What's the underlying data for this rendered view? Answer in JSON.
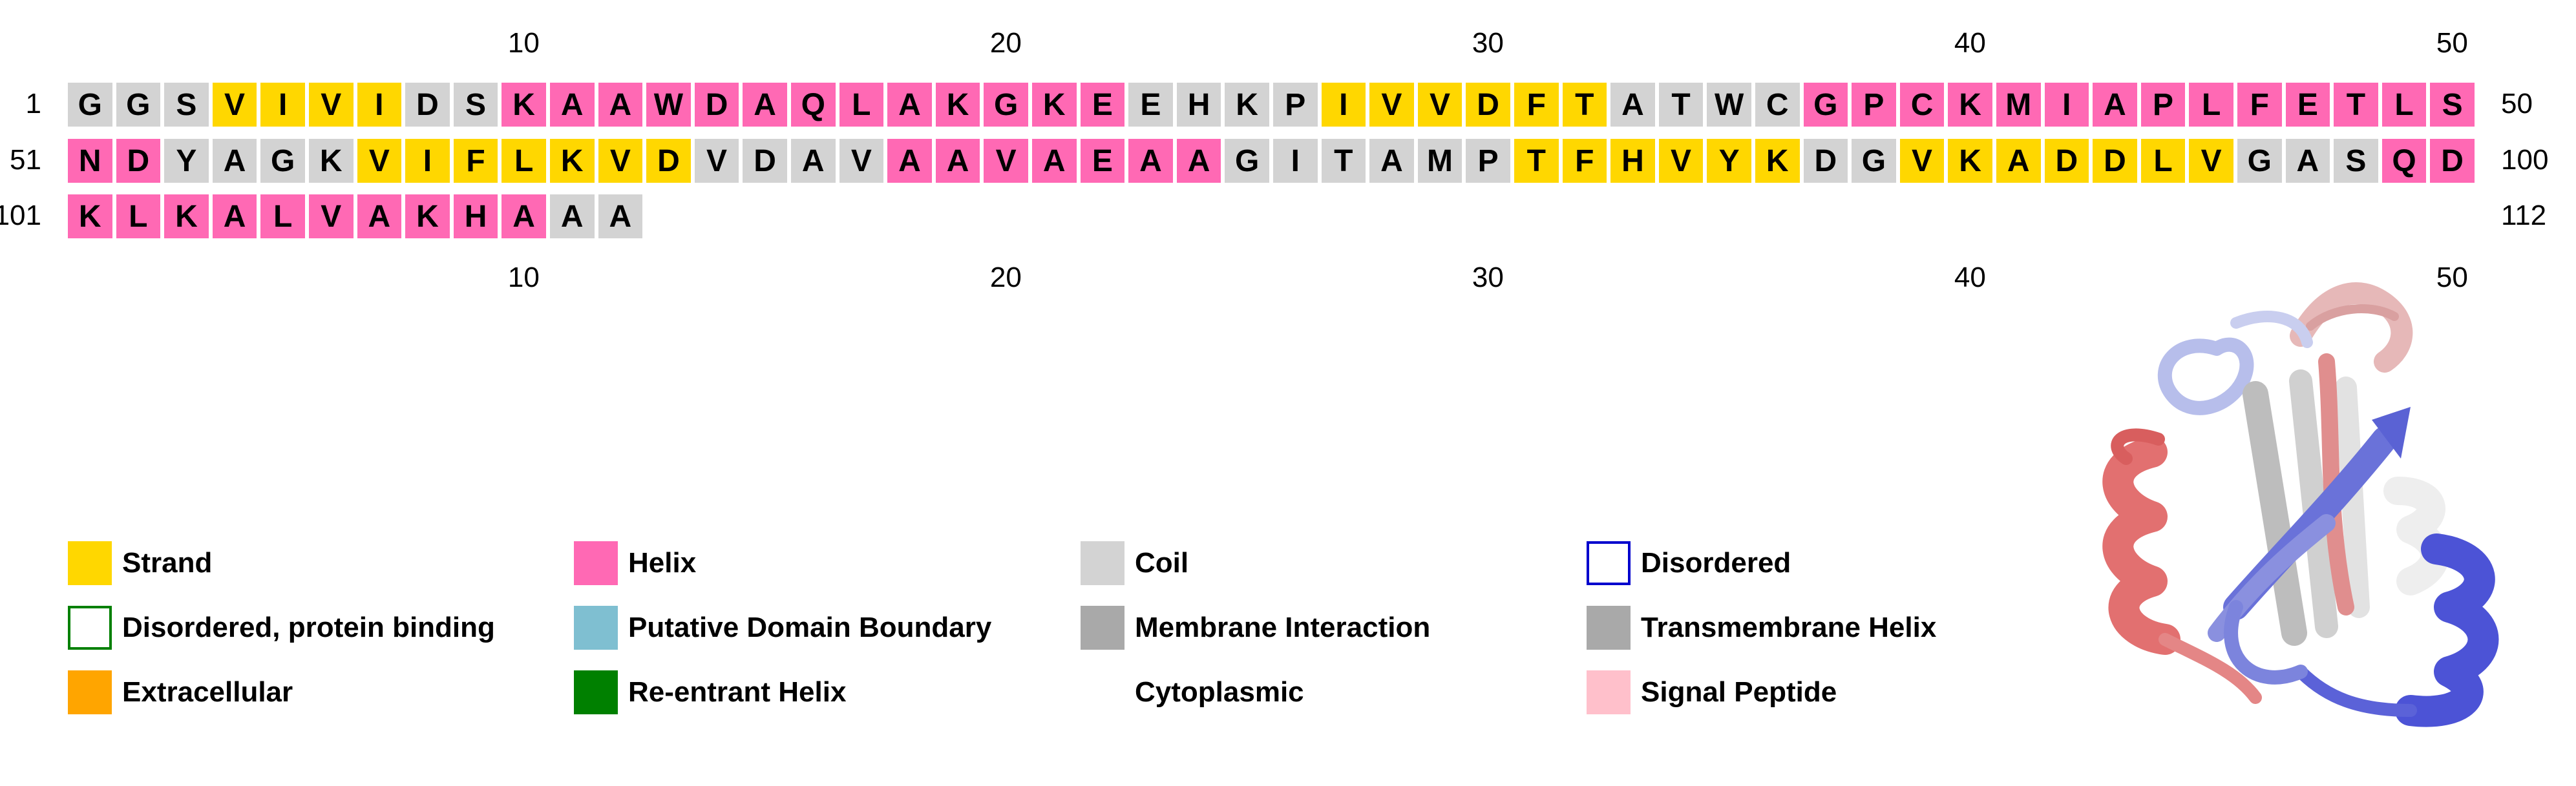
{
  "sequence_rows": [
    {
      "start_label": "1",
      "end_label": "50",
      "residues": [
        {
          "aa": "G",
          "ss": "coil"
        },
        {
          "aa": "G",
          "ss": "coil"
        },
        {
          "aa": "S",
          "ss": "coil"
        },
        {
          "aa": "V",
          "ss": "strand"
        },
        {
          "aa": "I",
          "ss": "strand"
        },
        {
          "aa": "V",
          "ss": "strand"
        },
        {
          "aa": "I",
          "ss": "strand"
        },
        {
          "aa": "D",
          "ss": "coil"
        },
        {
          "aa": "S",
          "ss": "coil"
        },
        {
          "aa": "K",
          "ss": "helix"
        },
        {
          "aa": "A",
          "ss": "helix"
        },
        {
          "aa": "A",
          "ss": "helix"
        },
        {
          "aa": "W",
          "ss": "helix"
        },
        {
          "aa": "D",
          "ss": "helix"
        },
        {
          "aa": "A",
          "ss": "helix"
        },
        {
          "aa": "Q",
          "ss": "helix"
        },
        {
          "aa": "L",
          "ss": "helix"
        },
        {
          "aa": "A",
          "ss": "helix"
        },
        {
          "aa": "K",
          "ss": "helix"
        },
        {
          "aa": "G",
          "ss": "helix"
        },
        {
          "aa": "K",
          "ss": "helix"
        },
        {
          "aa": "E",
          "ss": "helix"
        },
        {
          "aa": "E",
          "ss": "coil"
        },
        {
          "aa": "H",
          "ss": "coil"
        },
        {
          "aa": "K",
          "ss": "coil"
        },
        {
          "aa": "P",
          "ss": "coil"
        },
        {
          "aa": "I",
          "ss": "strand"
        },
        {
          "aa": "V",
          "ss": "strand"
        },
        {
          "aa": "V",
          "ss": "strand"
        },
        {
          "aa": "D",
          "ss": "strand"
        },
        {
          "aa": "F",
          "ss": "strand"
        },
        {
          "aa": "T",
          "ss": "strand"
        },
        {
          "aa": "A",
          "ss": "coil"
        },
        {
          "aa": "T",
          "ss": "coil"
        },
        {
          "aa": "W",
          "ss": "coil"
        },
        {
          "aa": "C",
          "ss": "coil"
        },
        {
          "aa": "G",
          "ss": "helix"
        },
        {
          "aa": "P",
          "ss": "helix"
        },
        {
          "aa": "C",
          "ss": "helix"
        },
        {
          "aa": "K",
          "ss": "helix"
        },
        {
          "aa": "M",
          "ss": "helix"
        },
        {
          "aa": "I",
          "ss": "helix"
        },
        {
          "aa": "A",
          "ss": "helix"
        },
        {
          "aa": "P",
          "ss": "helix"
        },
        {
          "aa": "L",
          "ss": "helix"
        },
        {
          "aa": "F",
          "ss": "helix"
        },
        {
          "aa": "E",
          "ss": "helix"
        },
        {
          "aa": "T",
          "ss": "helix"
        },
        {
          "aa": "L",
          "ss": "helix"
        },
        {
          "aa": "S",
          "ss": "helix"
        }
      ]
    },
    {
      "start_label": "51",
      "end_label": "100",
      "residues": [
        {
          "aa": "N",
          "ss": "helix"
        },
        {
          "aa": "D",
          "ss": "helix"
        },
        {
          "aa": "Y",
          "ss": "coil"
        },
        {
          "aa": "A",
          "ss": "coil"
        },
        {
          "aa": "G",
          "ss": "coil"
        },
        {
          "aa": "K",
          "ss": "coil"
        },
        {
          "aa": "V",
          "ss": "strand"
        },
        {
          "aa": "I",
          "ss": "strand"
        },
        {
          "aa": "F",
          "ss": "strand"
        },
        {
          "aa": "L",
          "ss": "strand"
        },
        {
          "aa": "K",
          "ss": "strand"
        },
        {
          "aa": "V",
          "ss": "strand"
        },
        {
          "aa": "D",
          "ss": "strand"
        },
        {
          "aa": "V",
          "ss": "coil"
        },
        {
          "aa": "D",
          "ss": "coil"
        },
        {
          "aa": "A",
          "ss": "coil"
        },
        {
          "aa": "V",
          "ss": "coil"
        },
        {
          "aa": "A",
          "ss": "helix"
        },
        {
          "aa": "A",
          "ss": "helix"
        },
        {
          "aa": "V",
          "ss": "helix"
        },
        {
          "aa": "A",
          "ss": "helix"
        },
        {
          "aa": "E",
          "ss": "helix"
        },
        {
          "aa": "A",
          "ss": "helix"
        },
        {
          "aa": "A",
          "ss": "helix"
        },
        {
          "aa": "G",
          "ss": "coil"
        },
        {
          "aa": "I",
          "ss": "coil"
        },
        {
          "aa": "T",
          "ss": "coil"
        },
        {
          "aa": "A",
          "ss": "coil"
        },
        {
          "aa": "M",
          "ss": "coil"
        },
        {
          "aa": "P",
          "ss": "coil"
        },
        {
          "aa": "T",
          "ss": "strand"
        },
        {
          "aa": "F",
          "ss": "strand"
        },
        {
          "aa": "H",
          "ss": "strand"
        },
        {
          "aa": "V",
          "ss": "strand"
        },
        {
          "aa": "Y",
          "ss": "strand"
        },
        {
          "aa": "K",
          "ss": "strand"
        },
        {
          "aa": "D",
          "ss": "coil"
        },
        {
          "aa": "G",
          "ss": "coil"
        },
        {
          "aa": "V",
          "ss": "strand"
        },
        {
          "aa": "K",
          "ss": "strand"
        },
        {
          "aa": "A",
          "ss": "strand"
        },
        {
          "aa": "D",
          "ss": "strand"
        },
        {
          "aa": "D",
          "ss": "strand"
        },
        {
          "aa": "L",
          "ss": "strand"
        },
        {
          "aa": "V",
          "ss": "strand"
        },
        {
          "aa": "G",
          "ss": "coil"
        },
        {
          "aa": "A",
          "ss": "coil"
        },
        {
          "aa": "S",
          "ss": "coil"
        },
        {
          "aa": "Q",
          "ss": "helix"
        },
        {
          "aa": "D",
          "ss": "helix"
        }
      ]
    },
    {
      "start_label": "101",
      "end_label": "112",
      "residues": [
        {
          "aa": "K",
          "ss": "helix"
        },
        {
          "aa": "L",
          "ss": "helix"
        },
        {
          "aa": "K",
          "ss": "helix"
        },
        {
          "aa": "A",
          "ss": "helix"
        },
        {
          "aa": "L",
          "ss": "helix"
        },
        {
          "aa": "V",
          "ss": "helix"
        },
        {
          "aa": "A",
          "ss": "helix"
        },
        {
          "aa": "K",
          "ss": "helix"
        },
        {
          "aa": "H",
          "ss": "helix"
        },
        {
          "aa": "A",
          "ss": "helix"
        },
        {
          "aa": "A",
          "ss": "coil"
        },
        {
          "aa": "A",
          "ss": "coil"
        }
      ]
    }
  ],
  "ruler_labels": [
    "10",
    "20",
    "30",
    "40",
    "50"
  ],
  "ss_colors": {
    "strand": "#FFD700",
    "helix": "#FF69B4",
    "coil": "#D3D3D3"
  },
  "legend": [
    {
      "label": "Strand",
      "fill": "#FFD700",
      "border": ""
    },
    {
      "label": "Helix",
      "fill": "#FF69B4",
      "border": ""
    },
    {
      "label": "Coil",
      "fill": "#D3D3D3",
      "border": ""
    },
    {
      "label": "Disordered",
      "fill": "#FFFFFF",
      "border": "#0000CD"
    },
    {
      "label": "Disordered, protein binding",
      "fill": "#FFFFFF",
      "border": "#008000"
    },
    {
      "label": "Putative Domain Boundary",
      "fill": "#7FBFD1",
      "border": ""
    },
    {
      "label": "Membrane Interaction",
      "fill": "#A9A9A9",
      "border": ""
    },
    {
      "label": "Transmembrane Helix",
      "fill": "#A9A9A9",
      "border": ""
    },
    {
      "label": "Extracellular",
      "fill": "#FFA500",
      "border": ""
    },
    {
      "label": "Re-entrant Helix",
      "fill": "#008000",
      "border": ""
    },
    {
      "label": "Cytoplasmic",
      "fill": "",
      "border": ""
    },
    {
      "label": "Signal Peptide",
      "fill": "#FFC0CB",
      "border": ""
    }
  ],
  "structure_image": {
    "icon": "protein-ribbon-structure",
    "colors": [
      "#4B52D6",
      "#9FA7E8",
      "#E57A7A",
      "#E8C4C4",
      "#F2F2F2"
    ]
  }
}
